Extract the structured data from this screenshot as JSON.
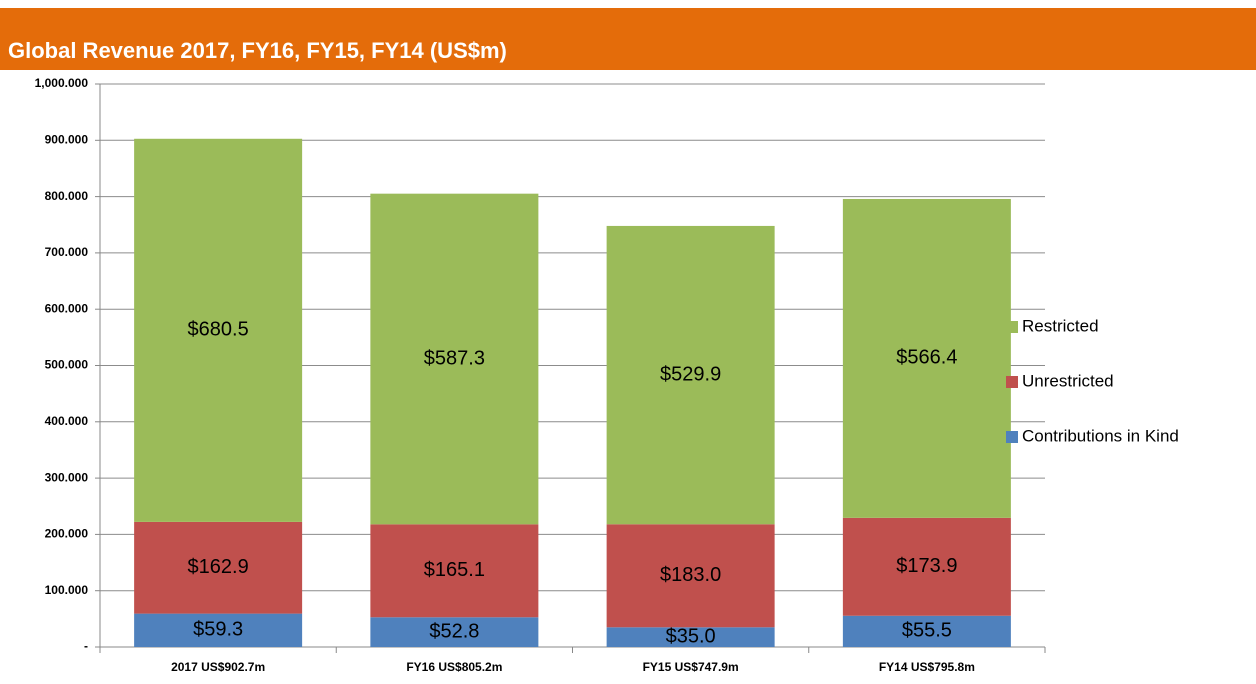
{
  "chart_data": {
    "type": "stacked_bar",
    "title": "Global Revenue 2017, FY16, FY15, FY14 (US$m)",
    "categories": [
      "2017 US$902.7m",
      "FY16 US$805.2m",
      "FY15 US$747.9m",
      "FY14 US$795.8m"
    ],
    "series": [
      {
        "name": "Contributions in Kind",
        "color": "#4f81bd",
        "values": [
          59.3,
          52.8,
          35.0,
          55.5
        ],
        "value_labels": [
          "$59.3",
          "$52.8",
          "$35.0",
          "$55.5"
        ]
      },
      {
        "name": "Unrestricted",
        "color": "#c0504d",
        "values": [
          162.9,
          165.1,
          183.0,
          173.9
        ],
        "value_labels": [
          "$162.9",
          "$165.1",
          "$183.0",
          "$173.9"
        ]
      },
      {
        "name": "Restricted",
        "color": "#9bbb59",
        "values": [
          680.5,
          587.3,
          529.9,
          566.4
        ],
        "value_labels": [
          "$680.5",
          "$587.3",
          "$529.9",
          "$566.4"
        ]
      }
    ],
    "ylim": [
      0,
      1000
    ],
    "yticks": [
      {
        "value": 0,
        "label": "-"
      },
      {
        "value": 100,
        "label": "100.000"
      },
      {
        "value": 200,
        "label": "200.000"
      },
      {
        "value": 300,
        "label": "300.000"
      },
      {
        "value": 400,
        "label": "400.000"
      },
      {
        "value": 500,
        "label": "500.000"
      },
      {
        "value": 600,
        "label": "600.000"
      },
      {
        "value": 700,
        "label": "700.000"
      },
      {
        "value": 800,
        "label": "800.000"
      },
      {
        "value": 900,
        "label": "900.000"
      },
      {
        "value": 1000,
        "label": "1,000.000"
      }
    ],
    "grid": true,
    "legend": "right"
  }
}
